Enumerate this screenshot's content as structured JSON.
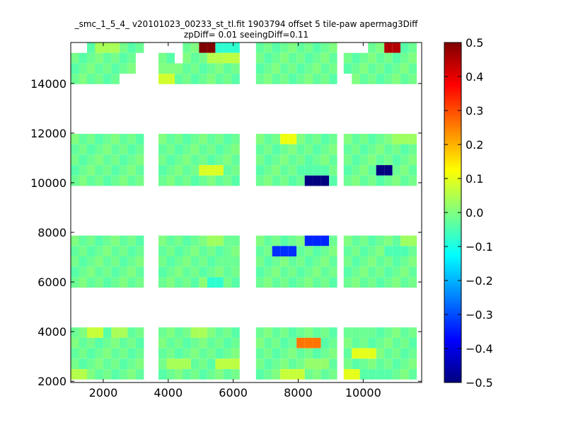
{
  "chart_data": {
    "type": "heatmap",
    "title": "_smc_1_5_4_ v20101023_00233_st_tl.fit 1903794 offset 5 tile-paw apermag3Diff\nzpDiff= 0.01 seeingDiff=0.11",
    "title_lines": [
      "_smc_1_5_4_ v20101023_00233_st_tl.fit 1903794 offset 5 tile-paw apermag3Diff",
      "zpDiff= 0.01 seeingDiff=0.11"
    ],
    "xlabel": "",
    "ylabel": "",
    "xlim": [
      1000,
      11800
    ],
    "ylim": [
      1950,
      15650
    ],
    "xticks": [
      2000,
      4000,
      6000,
      8000,
      10000
    ],
    "yticks": [
      2000,
      4000,
      6000,
      8000,
      10000,
      12000,
      14000
    ],
    "colorbar": {
      "colormap": "jet",
      "vmin": -0.5,
      "vmax": 0.5,
      "ticks": [
        0.5,
        0.4,
        0.3,
        0.2,
        0.1,
        0.0,
        -0.1,
        -0.2,
        -0.3,
        -0.4,
        -0.5
      ],
      "tick_labels": [
        "0.5",
        "0.4",
        "0.3",
        "0.2",
        "0.1",
        "0.0",
        "−0.1",
        "−0.2",
        "−0.3",
        "−0.4",
        "−0.5"
      ]
    },
    "grid": false,
    "bin_size": [
      250,
      420
    ],
    "rows_y": [
      15440,
      15020,
      14600,
      14180,
      11760,
      11340,
      10920,
      10500,
      10080,
      7660,
      7240,
      6820,
      6400,
      5980,
      3960,
      3540,
      3120,
      2700,
      2280
    ],
    "column_groups_x": [
      [
        1125,
        1375,
        1625,
        1875,
        2125,
        2375,
        2625,
        2875,
        3125
      ],
      [
        3825,
        4075,
        4325,
        4575,
        4825,
        5075,
        5325,
        5575,
        5825,
        6075
      ],
      [
        6825,
        7075,
        7325,
        7575,
        7825,
        8075,
        8325,
        8575,
        8825,
        9075
      ],
      [
        9525,
        9775,
        10025,
        10275,
        10525,
        10775,
        11025,
        11275,
        11525
      ]
    ],
    "cells": [
      [
        5200,
        15440,
        0.5
      ],
      [
        10940,
        15440,
        0.45
      ],
      [
        5830,
        15440,
        -0.08
      ],
      [
        2100,
        15440,
        0.04
      ],
      [
        3850,
        14600,
        0.0
      ],
      [
        3850,
        14180,
        0.08
      ],
      [
        5950,
        14810,
        0.08
      ],
      [
        5550,
        15020,
        0.05
      ],
      [
        5800,
        15020,
        0.06
      ],
      [
        7630,
        11760,
        0.11
      ],
      [
        5330,
        10500,
        0.09
      ],
      [
        8550,
        10500,
        -0.04
      ],
      [
        7580,
        7240,
        -0.33
      ],
      [
        8550,
        7660,
        -0.34
      ],
      [
        8550,
        10080,
        -0.5
      ],
      [
        10650,
        10330,
        -0.5
      ],
      [
        5600,
        7660,
        0.03
      ],
      [
        5850,
        7660,
        -0.02
      ],
      [
        5200,
        5980,
        0.02
      ],
      [
        5900,
        6820,
        -0.02
      ],
      [
        5150,
        5980,
        0.01
      ],
      [
        5400,
        5980,
        -0.08
      ],
      [
        11020,
        7240,
        -0.05
      ],
      [
        11500,
        7660,
        0.03
      ],
      [
        11250,
        11760,
        0.03
      ],
      [
        8280,
        3540,
        0.26
      ],
      [
        1750,
        3960,
        0.07
      ],
      [
        2500,
        3960,
        0.04
      ],
      [
        2750,
        3960,
        -0.03
      ],
      [
        5000,
        3960,
        0.04
      ],
      [
        10030,
        3960,
        -0.02
      ],
      [
        10030,
        3120,
        0.1
      ],
      [
        9530,
        2280,
        0.1
      ],
      [
        10290,
        2280,
        -0.04
      ],
      [
        10540,
        2280,
        -0.04
      ],
      [
        7830,
        2280,
        0.07
      ],
      [
        8570,
        2700,
        0.02
      ],
      [
        1125,
        2280,
        0.05
      ],
      [
        4325,
        2700,
        0.04
      ],
      [
        5830,
        2700,
        0.06
      ]
    ],
    "default_value": -0.02
  }
}
